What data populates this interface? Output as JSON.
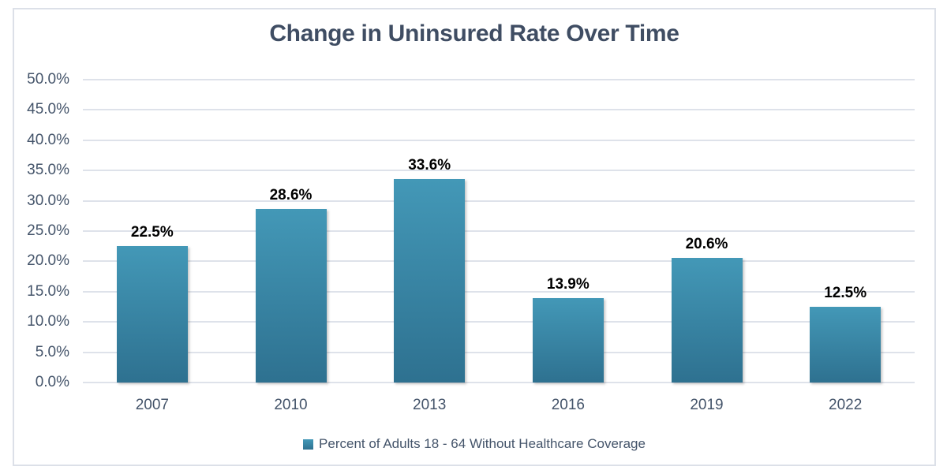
{
  "chart_data": {
    "type": "bar",
    "title": "Change in Uninsured Rate Over Time",
    "categories": [
      "2007",
      "2010",
      "2013",
      "2016",
      "2019",
      "2022"
    ],
    "values": [
      22.5,
      28.6,
      33.6,
      13.9,
      20.6,
      12.5
    ],
    "value_labels": [
      "22.5%",
      "28.6%",
      "33.6%",
      "13.9%",
      "20.6%",
      "12.5%"
    ],
    "xlabel": "",
    "ylabel": "",
    "ylim": [
      0,
      50
    ],
    "ytick_step": 5,
    "ytick_labels": [
      "0.0%",
      "5.0%",
      "10.0%",
      "15.0%",
      "20.0%",
      "25.0%",
      "30.0%",
      "35.0%",
      "40.0%",
      "45.0%",
      "50.0%"
    ],
    "grid": true,
    "legend": [
      "Percent of Adults 18 - 64 Without Healthcare Coverage"
    ],
    "legend_position": "bottom",
    "colors": {
      "bar_gradient_top": "#4398b7",
      "bar_gradient_bottom": "#2e7190",
      "grid": "#dee2ea",
      "axis_text": "#44546a",
      "title_text": "#3f4d63",
      "value_label_text": "#000000",
      "frame_border": "#dce0e8"
    }
  }
}
